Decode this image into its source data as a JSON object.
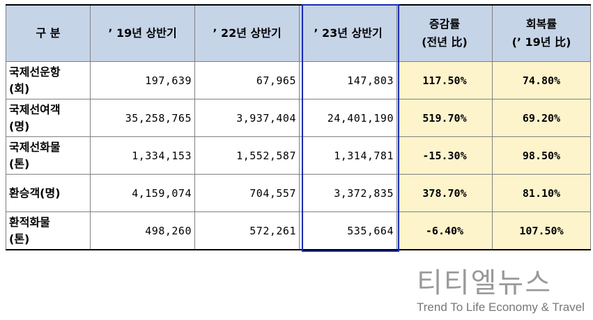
{
  "table": {
    "headers": {
      "category": "구  분",
      "y19": "’ 19년 상반기",
      "y22": "’ 22년 상반기",
      "y23": "’ 23년 상반기",
      "change_line1": "증감률",
      "change_line2": "(전년 比)",
      "recovery_line1": "회복률",
      "recovery_line2": "(’ 19년 比)"
    },
    "rows": [
      {
        "label_line1": "국제선운항",
        "label_line2": "(회)",
        "y19": "197,639",
        "y22": "67,965",
        "y23": "147,803",
        "change": "117.50%",
        "recovery": "74.80%"
      },
      {
        "label_line1": "국제선여객",
        "label_line2": "(명)",
        "y19": "35,258,765",
        "y22": "3,937,404",
        "y23": "24,401,190",
        "change": "519.70%",
        "recovery": "69.20%"
      },
      {
        "label_line1": "국제선화물",
        "label_line2": "(톤)",
        "y19": "1,334,153",
        "y22": "1,552,587",
        "y23": "1,314,781",
        "change": "-15.30%",
        "recovery": "98.50%"
      },
      {
        "label_line1": "환승객(명)",
        "label_line2": "",
        "y19": "4,159,074",
        "y22": "704,557",
        "y23": "3,372,835",
        "change": "378.70%",
        "recovery": "81.10%"
      },
      {
        "label_line1": "환적화물",
        "label_line2": "(톤)",
        "y19": "498,260",
        "y22": "572,261",
        "y23": "535,664",
        "change": "-6.40%",
        "recovery": "107.50%"
      }
    ]
  },
  "logo": {
    "korean": "티티엘뉴스",
    "english": "Trend To Life Economy & Travel"
  },
  "colors": {
    "header_bg": "#c6d4e8",
    "rate_bg": "#fdf4cc",
    "highlight_border": "#1a2bb0"
  }
}
